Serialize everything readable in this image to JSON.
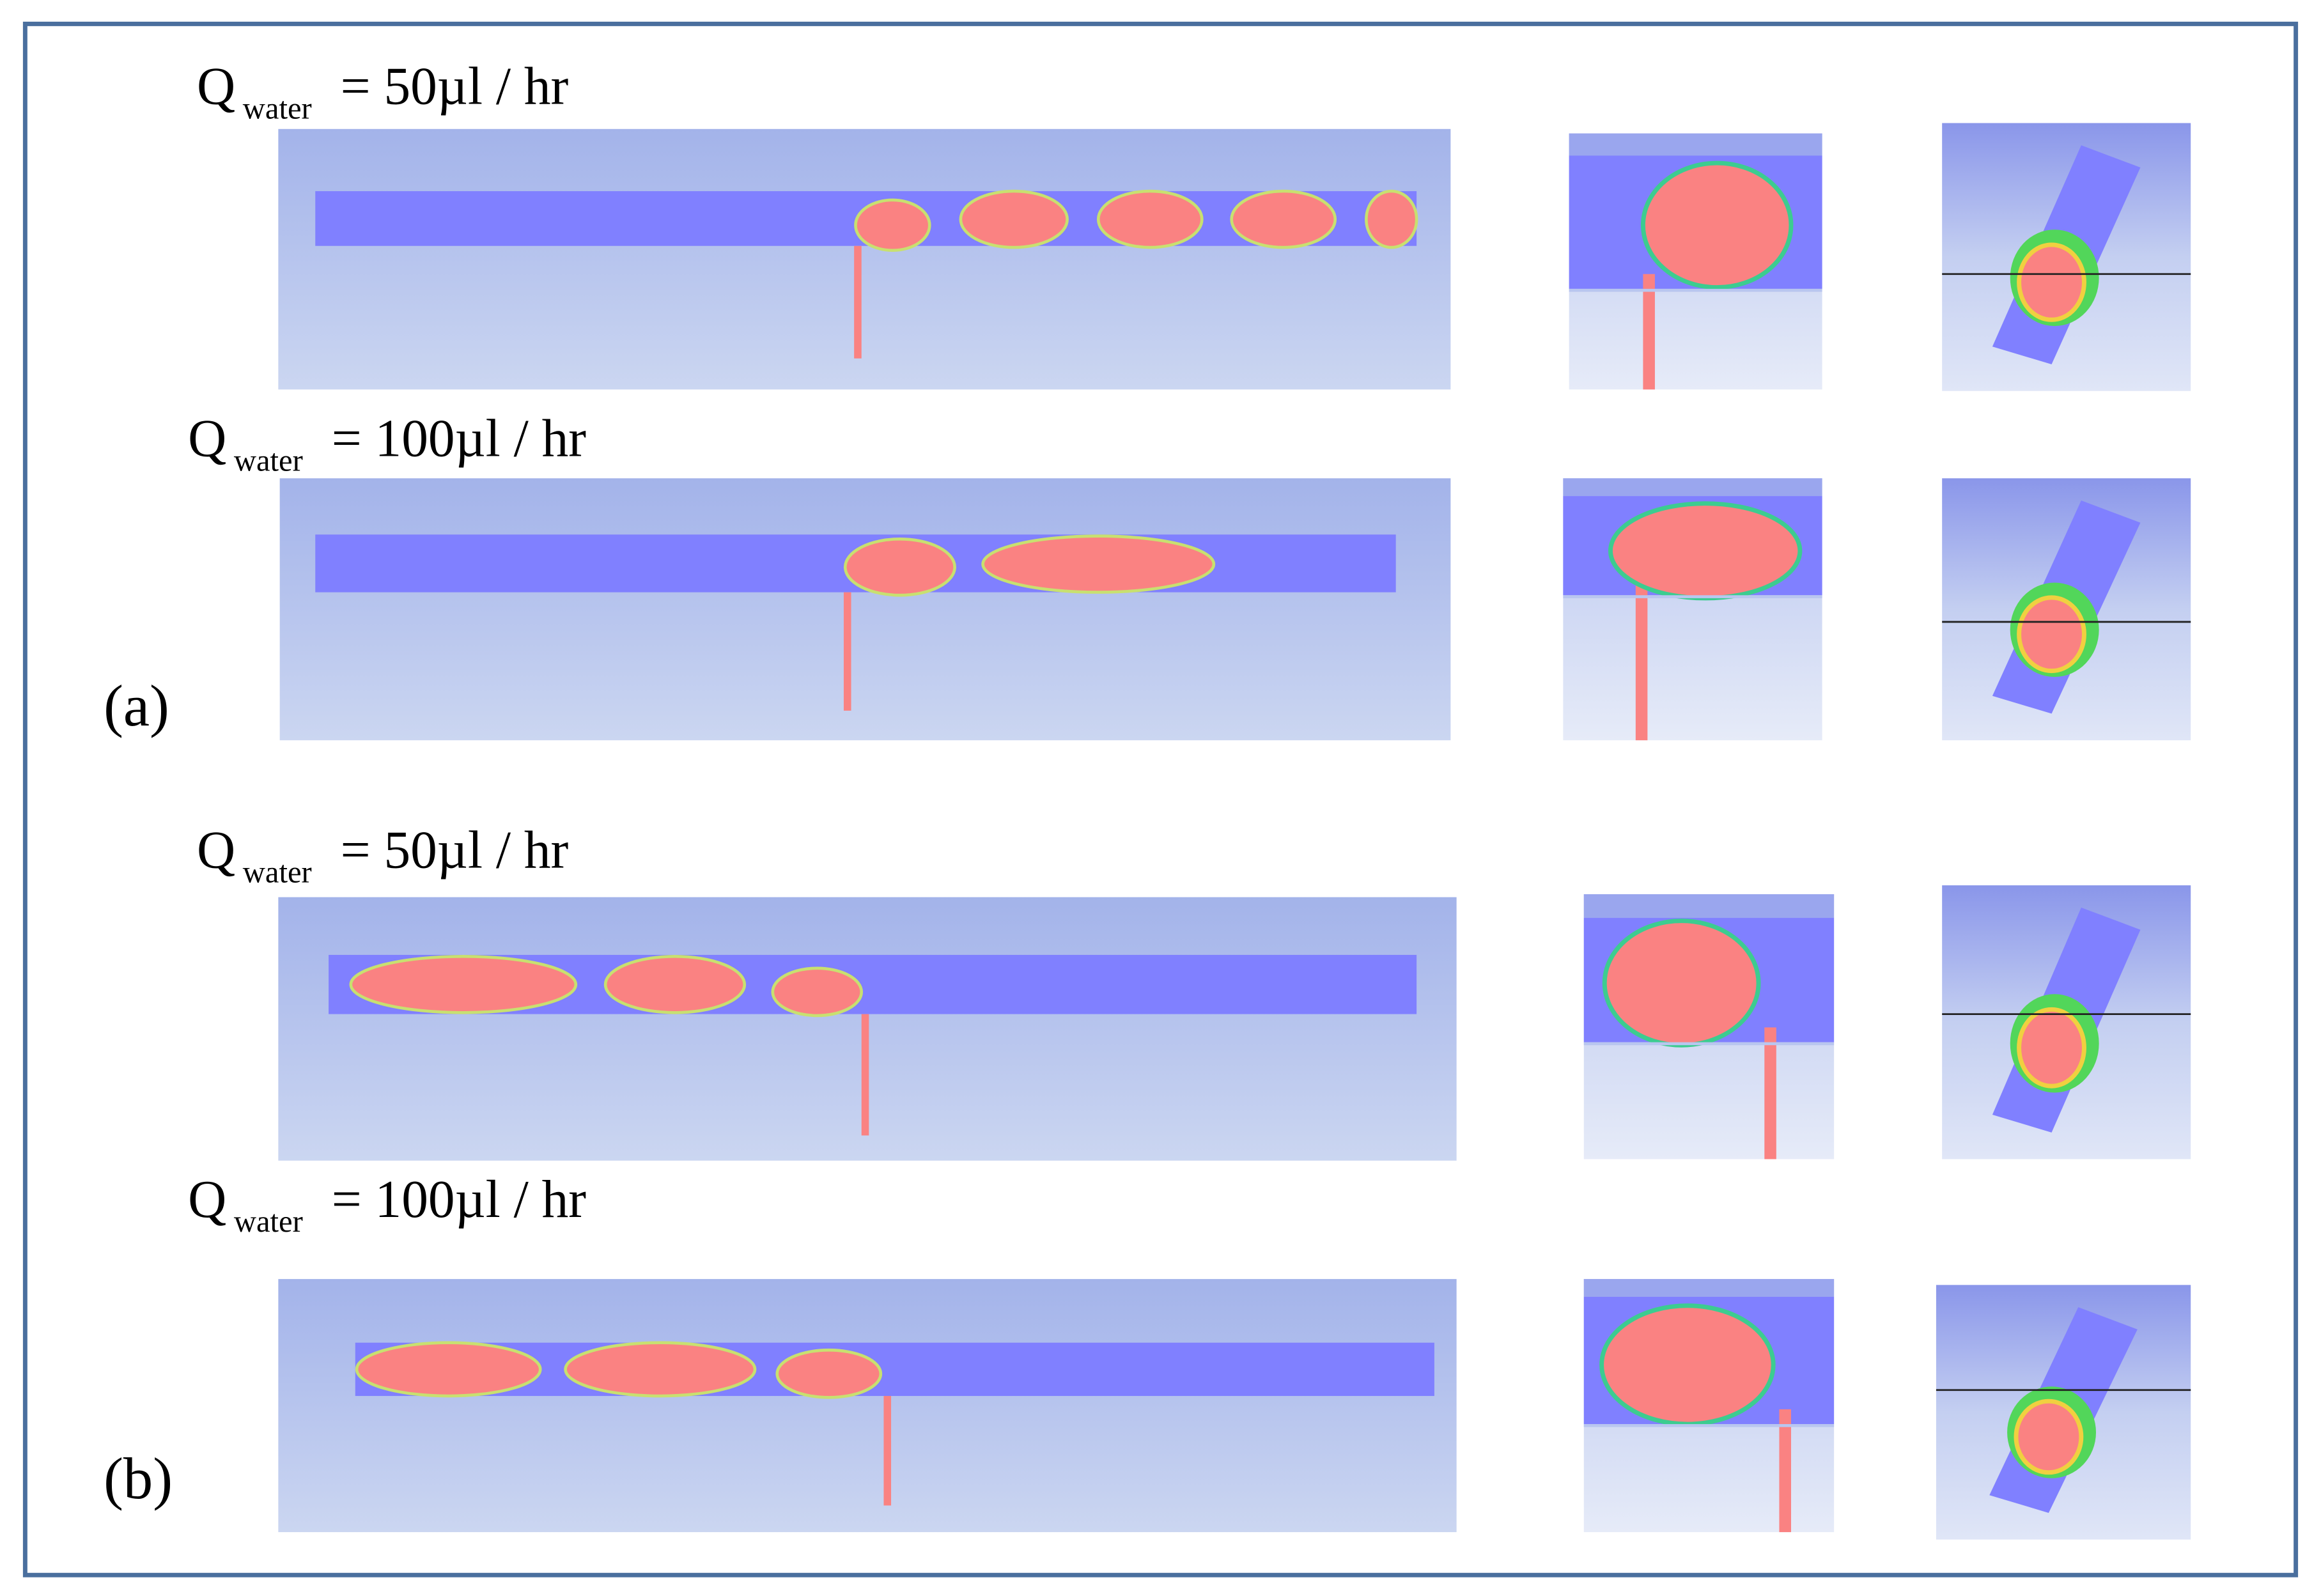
{
  "figure": {
    "rows": [
      {
        "quantity": "Q",
        "subscript": "water",
        "value": "= 50µl / hr"
      },
      {
        "quantity": "Q",
        "subscript": "water",
        "value": "= 100µl / hr"
      },
      {
        "quantity": "Q",
        "subscript": "water",
        "value": "= 50µl / hr"
      },
      {
        "quantity": "Q",
        "subscript": "water",
        "value": "= 100µl / hr"
      }
    ],
    "group_labels": [
      "(a)",
      "(b)"
    ]
  }
}
